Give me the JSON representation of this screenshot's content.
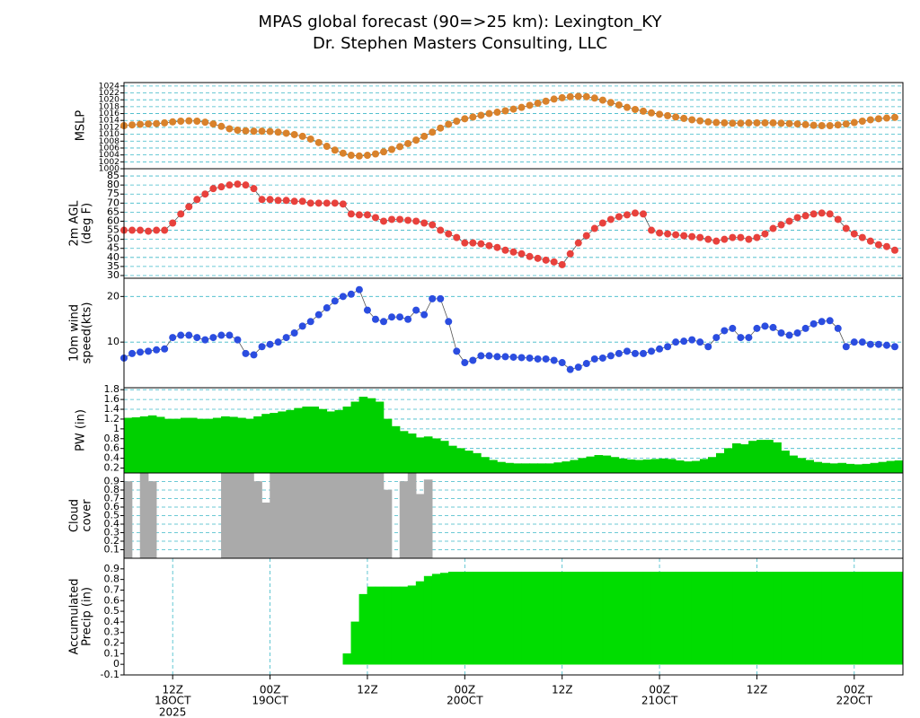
{
  "chart_data": {
    "title": "MPAS global forecast (90=>25 km): Lexington_KY",
    "subtitle": "Dr. Stephen Masters Consulting, LLC",
    "x": [
      0,
      1,
      2,
      3,
      4,
      5,
      6,
      7,
      8,
      9,
      10,
      11,
      12,
      13,
      14,
      15,
      16,
      17,
      18,
      19,
      20,
      21,
      22,
      23,
      24,
      25,
      26,
      27,
      28,
      29,
      30,
      31,
      32,
      33,
      34,
      35,
      36,
      37,
      38,
      39,
      40,
      41,
      42,
      43,
      44,
      45,
      46,
      47,
      48,
      49,
      50,
      51,
      52,
      53,
      54,
      55,
      56,
      57,
      58,
      59,
      60,
      61,
      62,
      63,
      64,
      65,
      66,
      67,
      68,
      69,
      70,
      71,
      72,
      73,
      74,
      75,
      76,
      77,
      78,
      79,
      80,
      81,
      82,
      83,
      84,
      85,
      86,
      87,
      88,
      89,
      90,
      91,
      92,
      93,
      94,
      95
    ],
    "xlim": [
      0,
      96
    ],
    "xticks": [
      {
        "value": 6,
        "label": "12Z"
      },
      {
        "value": 18,
        "label": "00Z"
      },
      {
        "value": 30,
        "label": "12Z"
      },
      {
        "value": 42,
        "label": "00Z"
      },
      {
        "value": 54,
        "label": "12Z"
      },
      {
        "value": 66,
        "label": "00Z"
      },
      {
        "value": 78,
        "label": "12Z"
      },
      {
        "value": 90,
        "label": "00Z"
      }
    ],
    "xdates": [
      {
        "value": 6,
        "label": "18OCT"
      },
      {
        "value": 18,
        "label": "19OCT"
      },
      {
        "value": 42,
        "label": "20OCT"
      },
      {
        "value": 66,
        "label": "21OCT"
      },
      {
        "value": 90,
        "label": "22OCT"
      }
    ],
    "year": {
      "value": 6,
      "label": "2025"
    },
    "panels": [
      {
        "type": "line",
        "ylabel": [
          "MSLP"
        ],
        "color": "#d9822b",
        "grid": true,
        "ylim": [
          1000,
          1025
        ],
        "yticks": [
          1000,
          1002,
          1004,
          1006,
          1008,
          1010,
          1012,
          1014,
          1016,
          1018,
          1020,
          1022,
          1024
        ],
        "values": [
          1012.5,
          1012.7,
          1012.9,
          1013,
          1013.1,
          1013.3,
          1013.6,
          1013.8,
          1013.9,
          1013.8,
          1013.5,
          1013,
          1012.3,
          1011.6,
          1011.2,
          1011,
          1010.9,
          1010.9,
          1010.8,
          1010.6,
          1010.3,
          1009.9,
          1009.4,
          1008.6,
          1007.6,
          1006.5,
          1005.4,
          1004.5,
          1003.9,
          1003.7,
          1003.9,
          1004.3,
          1004.9,
          1005.6,
          1006.4,
          1007.3,
          1008.3,
          1009.4,
          1010.6,
          1011.8,
          1012.9,
          1013.8,
          1014.5,
          1015,
          1015.5,
          1016,
          1016.4,
          1016.8,
          1017.3,
          1017.8,
          1018.4,
          1019,
          1019.6,
          1020.2,
          1020.6,
          1020.9,
          1021,
          1020.9,
          1020.5,
          1019.9,
          1019.2,
          1018.5,
          1017.8,
          1017.2,
          1016.7,
          1016.2,
          1015.8,
          1015.4,
          1015,
          1014.6,
          1014.2,
          1013.9,
          1013.6,
          1013.4,
          1013.3,
          1013.2,
          1013.2,
          1013.3,
          1013.3,
          1013.3,
          1013.3,
          1013.2,
          1013.1,
          1013,
          1012.8,
          1012.6,
          1012.5,
          1012.5,
          1012.7,
          1013,
          1013.4,
          1013.8,
          1014.2,
          1014.5,
          1014.7,
          1014.9
        ]
      },
      {
        "type": "line",
        "ylabel": [
          "2m AGL",
          "(deg F)"
        ],
        "color": "#e8413c",
        "grid": true,
        "ylim": [
          28.5,
          89
        ],
        "yticks": [
          30,
          35,
          40,
          45,
          50,
          55,
          60,
          65,
          70,
          75,
          80,
          85
        ],
        "values": [
          55,
          55,
          55,
          54.5,
          55,
          55,
          59,
          64,
          68,
          72,
          75,
          78,
          79,
          80,
          80.5,
          80,
          78,
          72,
          72,
          71.5,
          71.5,
          71,
          71,
          70,
          70,
          70,
          70,
          69.5,
          64,
          63.5,
          63.5,
          62,
          60,
          61,
          61,
          60.5,
          60,
          59,
          58,
          55,
          53,
          51,
          48,
          48,
          47.5,
          46.5,
          45.5,
          44,
          43,
          42,
          40.5,
          39.5,
          38.5,
          37.5,
          36,
          42,
          48,
          52,
          56,
          59,
          61,
          62.5,
          63.5,
          64.5,
          64,
          55,
          53.5,
          53,
          52.5,
          52,
          51.5,
          51,
          50,
          49,
          50,
          51,
          51,
          50,
          51,
          53,
          56,
          58,
          60,
          62,
          63,
          64,
          64.5,
          64,
          61,
          56,
          53,
          51,
          49,
          47,
          46,
          44
        ]
      },
      {
        "type": "line",
        "ylabel": [
          "10m wind",
          "speed(kts)"
        ],
        "color": "#2b4de0",
        "grid": true,
        "ylim": [
          0,
          24
        ],
        "yticks": [
          10,
          20
        ],
        "values": [
          6.5,
          7.5,
          7.8,
          8,
          8.3,
          8.5,
          11,
          11.5,
          11.5,
          11,
          10.5,
          11,
          11.5,
          11.5,
          10.5,
          7.5,
          7.2,
          9,
          9.5,
          10,
          11,
          12,
          13.5,
          14.5,
          16,
          17.5,
          19,
          20,
          20.5,
          21.5,
          17,
          15,
          14.5,
          15.5,
          15.5,
          15,
          17,
          16,
          19.5,
          19.5,
          14.5,
          8,
          5.5,
          6,
          7,
          7,
          6.8,
          6.8,
          6.7,
          6.6,
          6.5,
          6.3,
          6.3,
          6,
          5.5,
          4,
          4.5,
          5.3,
          6.3,
          6.5,
          7,
          7.5,
          8,
          7.5,
          7.5,
          8,
          8.5,
          9,
          10,
          10.2,
          10.5,
          10,
          9,
          11,
          12.5,
          13,
          11,
          11,
          13,
          13.5,
          13.2,
          12,
          11.5,
          12,
          13,
          14,
          14.5,
          14.7,
          13,
          9,
          10,
          10,
          9.5,
          9.5,
          9.3,
          9
        ]
      },
      {
        "type": "bar",
        "ylabel": [
          "PW (in)"
        ],
        "color": "#00d000",
        "grid": true,
        "ylim": [
          0.1,
          1.84
        ],
        "yticks": [
          0.2,
          0.4,
          0.6,
          0.8,
          1,
          1.2,
          1.4,
          1.6,
          1.8
        ],
        "values": [
          1.22,
          1.23,
          1.25,
          1.27,
          1.24,
          1.2,
          1.2,
          1.22,
          1.22,
          1.2,
          1.2,
          1.22,
          1.25,
          1.24,
          1.22,
          1.2,
          1.25,
          1.3,
          1.32,
          1.35,
          1.38,
          1.42,
          1.45,
          1.45,
          1.4,
          1.35,
          1.38,
          1.45,
          1.55,
          1.65,
          1.62,
          1.55,
          1.2,
          1.05,
          0.95,
          0.9,
          0.82,
          0.84,
          0.8,
          0.75,
          0.65,
          0.6,
          0.55,
          0.5,
          0.42,
          0.36,
          0.32,
          0.3,
          0.29,
          0.29,
          0.29,
          0.29,
          0.29,
          0.31,
          0.33,
          0.36,
          0.4,
          0.43,
          0.46,
          0.45,
          0.42,
          0.39,
          0.37,
          0.36,
          0.37,
          0.38,
          0.39,
          0.38,
          0.35,
          0.33,
          0.34,
          0.38,
          0.42,
          0.5,
          0.6,
          0.7,
          0.68,
          0.75,
          0.77,
          0.77,
          0.72,
          0.55,
          0.45,
          0.4,
          0.36,
          0.32,
          0.3,
          0.29,
          0.3,
          0.28,
          0.27,
          0.28,
          0.3,
          0.32,
          0.34,
          0.35
        ]
      },
      {
        "type": "bar",
        "ylabel": [
          "Cloud",
          "cover"
        ],
        "color": "#aaaaaa",
        "grid": true,
        "ylim": [
          0,
          1
        ],
        "yticks": [
          0.1,
          0.2,
          0.3,
          0.4,
          0.5,
          0.6,
          0.7,
          0.8,
          0.9
        ],
        "values": [
          0.9,
          0,
          1,
          0.9,
          0,
          0,
          0,
          0,
          0,
          0,
          0,
          0,
          1,
          1,
          1,
          1,
          0.9,
          0.65,
          1,
          1,
          1,
          1,
          1,
          1,
          1,
          1,
          1,
          1,
          1,
          1,
          1,
          1,
          0.8,
          0,
          0.9,
          1,
          0.75,
          0.92,
          0,
          0,
          0,
          0,
          0,
          0,
          0,
          0,
          0,
          0,
          0,
          0,
          0,
          0,
          0,
          0,
          0,
          0,
          0,
          0,
          0,
          0,
          0,
          0,
          0,
          0,
          0,
          0,
          0,
          0,
          0,
          0,
          0,
          0,
          0,
          0,
          0,
          0,
          0,
          0,
          0,
          0,
          0,
          0,
          0,
          0,
          0,
          0,
          0,
          0,
          0,
          0,
          0,
          0,
          0,
          0,
          0,
          0
        ]
      },
      {
        "type": "bar",
        "ylabel": [
          "Accumulated",
          "Precip (in)"
        ],
        "color": "#00dd00",
        "grid": false,
        "xgrid": true,
        "ylim": [
          -0.1,
          1
        ],
        "yticks": [
          -0.1,
          0,
          0.1,
          0.2,
          0.3,
          0.4,
          0.5,
          0.6,
          0.7,
          0.8,
          0.9
        ],
        "values": [
          0,
          0,
          0,
          0,
          0,
          0,
          0,
          0,
          0,
          0,
          0,
          0,
          0,
          0,
          0,
          0,
          0,
          0,
          0,
          0,
          0,
          0,
          0,
          0,
          0,
          0,
          0,
          0.1,
          0.4,
          0.66,
          0.73,
          0.73,
          0.73,
          0.73,
          0.73,
          0.74,
          0.78,
          0.83,
          0.85,
          0.86,
          0.87,
          0.87,
          0.87,
          0.87,
          0.87,
          0.87,
          0.87,
          0.87,
          0.87,
          0.87,
          0.87,
          0.87,
          0.87,
          0.87,
          0.87,
          0.87,
          0.87,
          0.87,
          0.87,
          0.87,
          0.87,
          0.87,
          0.87,
          0.87,
          0.87,
          0.87,
          0.87,
          0.87,
          0.87,
          0.87,
          0.87,
          0.87,
          0.87,
          0.87,
          0.87,
          0.87,
          0.87,
          0.87,
          0.87,
          0.87,
          0.87,
          0.87,
          0.87,
          0.87,
          0.87,
          0.87,
          0.87,
          0.87,
          0.87,
          0.87,
          0.87,
          0.87,
          0.87,
          0.87,
          0.87,
          0.87
        ]
      }
    ]
  }
}
